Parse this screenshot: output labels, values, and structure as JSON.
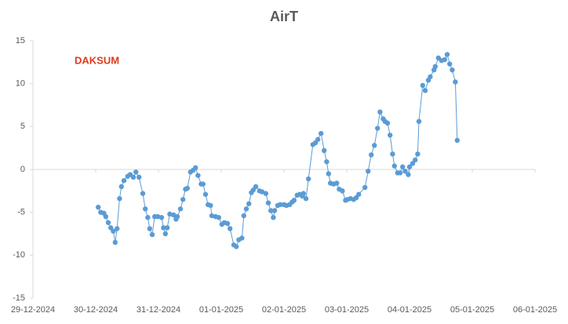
{
  "chart_data": {
    "type": "line",
    "title": "AirT",
    "annotation": "DAKSUM",
    "color": "#5b9bd5",
    "annotation_color": "#e03a1e",
    "x": [
      1.04,
      1.08,
      1.13,
      1.16,
      1.2,
      1.24,
      1.28,
      1.31,
      1.34,
      1.38,
      1.41,
      1.45,
      1.51,
      1.55,
      1.6,
      1.64,
      1.69,
      1.75,
      1.79,
      1.83,
      1.86,
      1.9,
      1.94,
      1.99,
      2.05,
      2.08,
      2.11,
      2.14,
      2.18,
      2.24,
      2.28,
      2.3,
      2.35,
      2.39,
      2.43,
      2.46,
      2.51,
      2.55,
      2.59,
      2.63,
      2.68,
      2.71,
      2.75,
      2.79,
      2.83,
      2.85,
      2.91,
      2.96,
      3.01,
      3.05,
      3.1,
      3.14,
      3.2,
      3.24,
      3.28,
      3.33,
      3.36,
      3.4,
      3.44,
      3.48,
      3.51,
      3.55,
      3.61,
      3.65,
      3.71,
      3.75,
      3.79,
      3.83,
      3.85,
      3.9,
      3.94,
      4,
      4.04,
      4.09,
      4.13,
      4.16,
      4.21,
      4.25,
      4.29,
      4.31,
      4.35,
      4.39,
      4.46,
      4.5,
      4.54,
      4.59,
      4.64,
      4.68,
      4.71,
      4.74,
      4.79,
      4.84,
      4.88,
      4.93,
      4.98,
      5.01,
      5.06,
      5.11,
      5.15,
      5.19,
      5.29,
      5.34,
      5.39,
      5.44,
      5.49,
      5.53,
      5.58,
      5.61,
      5.65,
      5.69,
      5.73,
      5.76,
      5.81,
      5.85,
      5.89,
      5.93,
      5.98,
      6,
      6.05,
      6.09,
      6.13,
      6.15,
      6.21,
      6.25,
      6.3,
      6.33,
      6.39,
      6.41,
      6.46,
      6.51,
      6.56,
      6.6,
      6.64,
      6.68,
      6.73,
      6.76
    ],
    "values": [
      -4.4,
      -5,
      -5.1,
      -5.5,
      -6.2,
      -6.8,
      -7.2,
      -8.5,
      -6.9,
      -3.4,
      -2,
      -1.3,
      -0.8,
      -0.6,
      -0.9,
      -0.3,
      -0.9,
      -2.8,
      -4.6,
      -5.6,
      -6.9,
      -7.6,
      -5.5,
      -5.5,
      -5.6,
      -6.8,
      -7.5,
      -6.8,
      -5.2,
      -5.3,
      -5.8,
      -5.5,
      -4.6,
      -3.5,
      -2.3,
      -2.2,
      -0.3,
      -0.1,
      0.2,
      -0.7,
      -1.7,
      -1.7,
      -2.9,
      -4.1,
      -4.2,
      -5.4,
      -5.5,
      -5.6,
      -6.4,
      -6.2,
      -6.3,
      -6.9,
      -8.8,
      -9,
      -8.2,
      -8,
      -5.4,
      -4.6,
      -4,
      -2.7,
      -2.4,
      -2,
      -2.5,
      -2.6,
      -2.8,
      -3.9,
      -4.8,
      -5.6,
      -4.8,
      -4.2,
      -4.1,
      -4.1,
      -4.2,
      -4.1,
      -3.8,
      -3.6,
      -3,
      -2.9,
      -3.1,
      -2.8,
      -3.4,
      -1.1,
      2.9,
      3.1,
      3.5,
      4.2,
      2.2,
      0.9,
      -0.5,
      -1.6,
      -1.7,
      -1.6,
      -2.3,
      -2.5,
      -3.6,
      -3.5,
      -3.4,
      -3.5,
      -3.3,
      -2.9,
      -2.1,
      -0.2,
      1.7,
      2.8,
      4.8,
      6.7,
      5.9,
      5.6,
      5.4,
      4,
      1.8,
      0.4,
      -0.4,
      -0.4,
      0.3,
      -0.2,
      -0.6,
      0.3,
      0.7,
      1.1,
      1.8,
      5.6,
      9.8,
      9.2,
      10.4,
      10.8,
      11.6,
      12,
      13,
      12.7,
      12.8,
      13.4,
      12.3,
      11.6,
      10.2,
      3.4
    ],
    "xlim": [
      0,
      8
    ],
    "xticks": [
      {
        "value": 0,
        "label": "29-12-2024"
      },
      {
        "value": 1,
        "label": "30-12-2024"
      },
      {
        "value": 2,
        "label": "31-12-2024"
      },
      {
        "value": 3,
        "label": "01-01-2025"
      },
      {
        "value": 4,
        "label": "02-01-2025"
      },
      {
        "value": 5,
        "label": "03-01-2025"
      },
      {
        "value": 6,
        "label": "04-01-2025"
      },
      {
        "value": 7,
        "label": "05-01-2025"
      },
      {
        "value": 8,
        "label": "06-01-2025"
      }
    ],
    "ylim": [
      -15,
      15
    ],
    "yticks": [
      -15,
      -10,
      -5,
      0,
      5,
      10,
      15
    ]
  }
}
